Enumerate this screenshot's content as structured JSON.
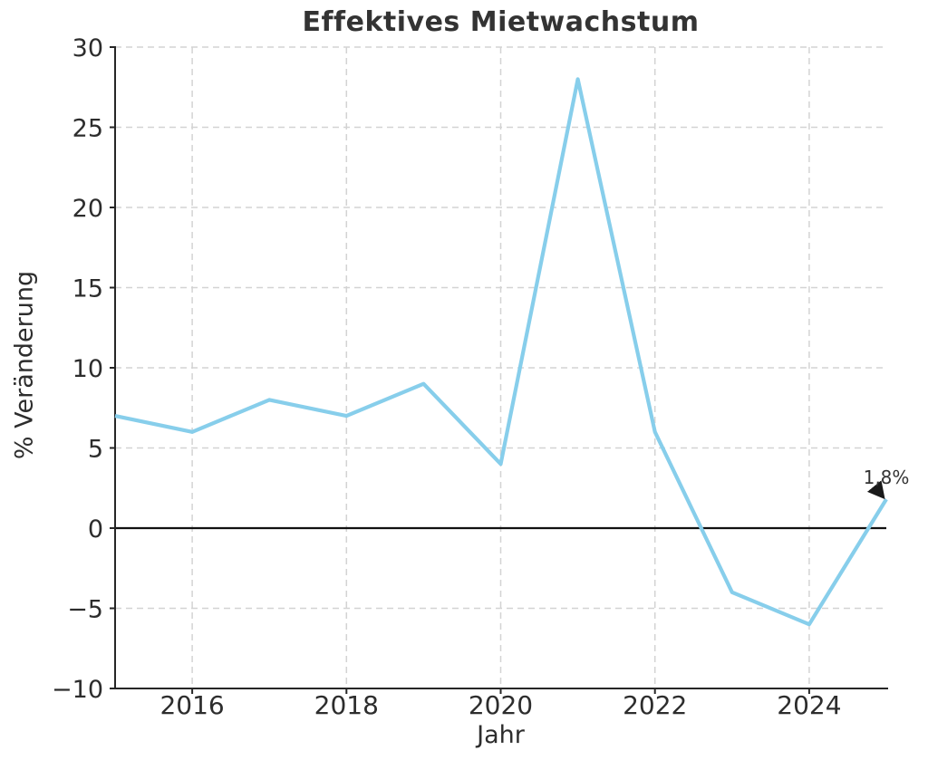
{
  "chart_data": {
    "type": "line",
    "title": "Effektives Mietwachstum",
    "xlabel": "Jahr",
    "ylabel": "% Veränderung",
    "x": [
      2015,
      2016,
      2017,
      2018,
      2019,
      2020,
      2021,
      2022,
      2023,
      2024,
      2025
    ],
    "series": [
      {
        "name": "Effektives Mietwachstum",
        "values": [
          7,
          6,
          8,
          7,
          9,
          4,
          28,
          6,
          -4,
          -6,
          1.8
        ]
      }
    ],
    "xlim": [
      2015,
      2025
    ],
    "ylim": [
      -10,
      30
    ],
    "xticks": [
      2016,
      2018,
      2020,
      2022,
      2024
    ],
    "yticks": [
      -10,
      -5,
      0,
      5,
      10,
      15,
      20,
      25,
      30
    ],
    "grid": true,
    "grid_style": "dashed",
    "zero_line": true,
    "legend": "none",
    "line_color": "#87CEEB",
    "text_color": "#2d2d2d",
    "annotation": {
      "text": "1,8%",
      "x": 2025,
      "y": 1.8
    }
  }
}
